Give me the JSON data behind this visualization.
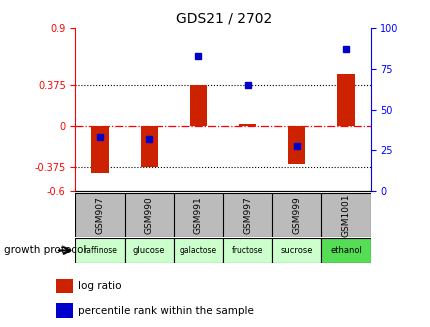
{
  "title": "GDS21 / 2702",
  "samples": [
    "GSM907",
    "GSM990",
    "GSM991",
    "GSM997",
    "GSM999",
    "GSM1001"
  ],
  "protocols": [
    "raffinose",
    "glucose",
    "galactose",
    "fructose",
    "sucrose",
    "ethanol"
  ],
  "protocol_colors": [
    "#ccffcc",
    "#ccffcc",
    "#ccffcc",
    "#ccffcc",
    "#ccffcc",
    "#55dd55"
  ],
  "log_ratios": [
    -0.43,
    -0.38,
    0.375,
    0.02,
    -0.35,
    0.48
  ],
  "percentile_ranks": [
    33,
    32,
    83,
    65,
    28,
    87
  ],
  "ylim_left": [
    -0.6,
    0.9
  ],
  "ylim_right": [
    0,
    100
  ],
  "hline_values": [
    0.375,
    -0.375
  ],
  "left_yticks": [
    -0.6,
    -0.375,
    0,
    0.375,
    0.9
  ],
  "right_yticks": [
    0,
    25,
    50,
    75,
    100
  ],
  "bar_color": "#cc2200",
  "dot_color": "#0000cc",
  "gsm_bg": "#bbbbbb",
  "background_color": "#ffffff",
  "growth_protocol_label": "growth protocol",
  "legend_log_ratio": "log ratio",
  "legend_percentile": "percentile rank within the sample",
  "title_fontsize": 10,
  "tick_fontsize": 7,
  "label_fontsize": 7,
  "bar_width": 0.35
}
